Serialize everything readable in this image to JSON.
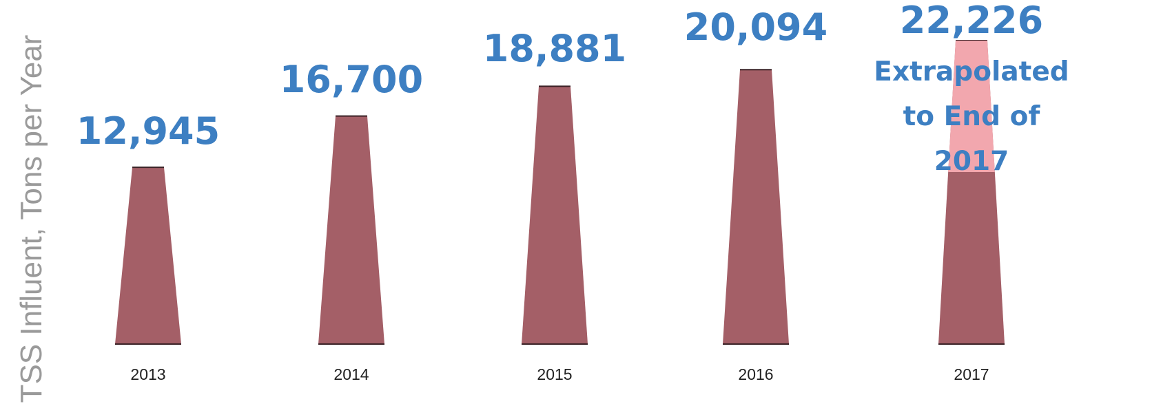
{
  "chart_data": {
    "type": "bar",
    "title": "",
    "xlabel": "",
    "ylabel": "TSS Influent,  Tons per Year",
    "categories": [
      "2013",
      "2014",
      "2015",
      "2016",
      "2017"
    ],
    "values": [
      12945,
      16700,
      18881,
      20094,
      22226
    ],
    "value_labels": [
      "12,945",
      "16,700",
      "18,881",
      "20,094",
      "22,226"
    ],
    "annotations": [
      {
        "category": "2017",
        "lines": [
          "Extrapolated",
          "to End of",
          "2017"
        ]
      }
    ],
    "ylim": [
      0,
      22226
    ],
    "grid": false,
    "legend": "none",
    "colors": {
      "bar": "#a45f67",
      "bar_edge": "#3a2226",
      "bar_highlight": "#f2a7ae",
      "label": "#3d7fc2",
      "axis_label": "#9a9a9a",
      "tick": "#222222"
    }
  }
}
